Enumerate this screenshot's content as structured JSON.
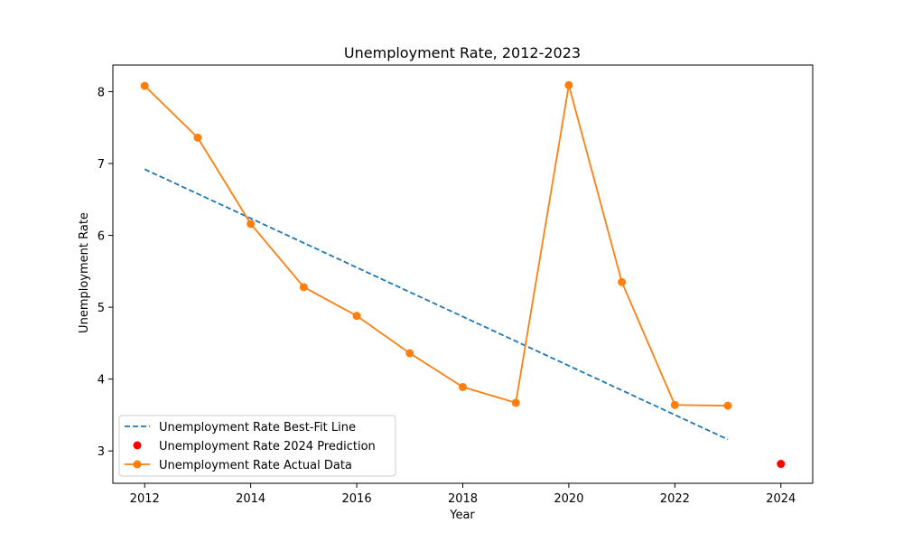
{
  "chart_data": {
    "type": "line",
    "title": "Unemployment Rate, 2012-2023",
    "xlabel": "Year",
    "ylabel": "Unemployment Rate",
    "xlim": [
      2011.4,
      2024.6
    ],
    "ylim": [
      2.55,
      8.37
    ],
    "xticks": [
      2012,
      2014,
      2016,
      2018,
      2020,
      2022,
      2024
    ],
    "yticks": [
      3,
      4,
      5,
      6,
      7,
      8
    ],
    "grid": false,
    "legend_position": "lower-left",
    "series": [
      {
        "name": "Unemployment Rate Best-Fit Line",
        "style": "dashed",
        "color": "#1f77b4",
        "x": [
          2012,
          2023
        ],
        "y": [
          6.92,
          3.16
        ]
      },
      {
        "name": "Unemployment Rate 2024 Prediction",
        "style": "marker",
        "color": "#ff0000",
        "x": [
          2024
        ],
        "y": [
          2.82
        ]
      },
      {
        "name": "Unemployment Rate Actual Data",
        "style": "line-marker",
        "color": "#ff7f0e",
        "x": [
          2012,
          2013,
          2014,
          2015,
          2016,
          2017,
          2018,
          2019,
          2020,
          2021,
          2022,
          2023
        ],
        "y": [
          8.08,
          7.36,
          6.16,
          5.28,
          4.88,
          4.36,
          3.89,
          3.67,
          8.09,
          5.35,
          3.64,
          3.63
        ]
      }
    ]
  }
}
